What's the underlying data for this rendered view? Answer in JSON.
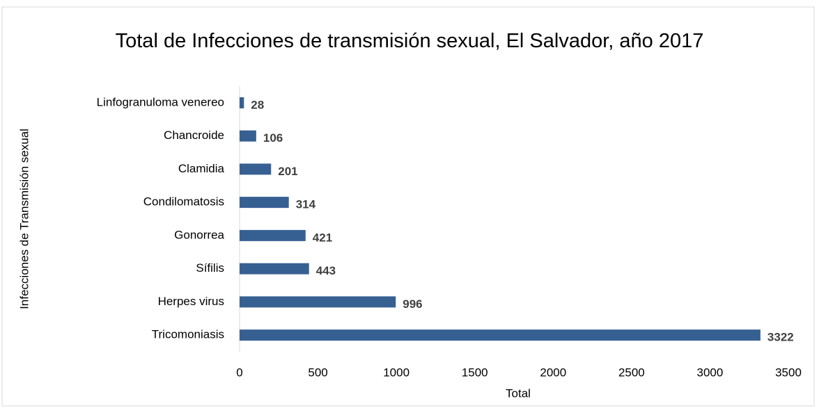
{
  "chart_data": {
    "type": "bar",
    "orientation": "horizontal",
    "title": "Total de Infecciones de transmisión sexual, El Salvador, año 2017",
    "x_label": "Total",
    "y_label": "Infecciones de Transmisión sexual",
    "categories": [
      "Linfogranuloma venereo",
      "Chancroide",
      "Clamidia",
      "Condilomatosis",
      "Gonorrea",
      "Sífilis",
      "Herpes virus",
      "Tricomoniasis"
    ],
    "values": [
      28,
      106,
      201,
      314,
      421,
      443,
      996,
      3322
    ],
    "color": "#376092",
    "xlim": [
      0,
      3500
    ],
    "xticks": [
      0,
      500,
      1000,
      1500,
      2000,
      2500,
      3000,
      3500
    ],
    "grid": false
  }
}
